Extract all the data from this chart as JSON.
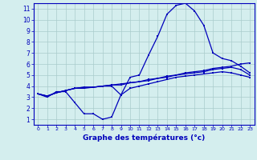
{
  "title": "Graphe des températures (°c)",
  "background_color": "#d4eeee",
  "grid_color": "#aacccc",
  "line_color": "#0000bb",
  "xlim": [
    -0.5,
    23.5
  ],
  "ylim": [
    0.5,
    11.5
  ],
  "xticks": [
    0,
    1,
    2,
    3,
    4,
    5,
    6,
    7,
    8,
    9,
    10,
    11,
    12,
    13,
    14,
    15,
    16,
    17,
    18,
    19,
    20,
    21,
    22,
    23
  ],
  "yticks": [
    1,
    2,
    3,
    4,
    5,
    6,
    7,
    8,
    9,
    10,
    11
  ],
  "curve1_x": [
    0,
    1,
    2,
    3,
    4,
    5,
    6,
    7,
    8,
    9,
    10,
    11,
    12,
    13,
    14,
    15,
    16,
    17,
    18,
    19,
    20,
    21,
    22,
    23
  ],
  "curve1_y": [
    3.3,
    3.0,
    3.5,
    3.5,
    2.5,
    1.5,
    1.5,
    1.0,
    1.2,
    3.2,
    4.8,
    5.0,
    6.8,
    8.5,
    10.5,
    11.3,
    11.5,
    10.8,
    9.5,
    7.0,
    6.5,
    6.3,
    5.8,
    5.2
  ],
  "curve2_x": [
    0,
    1,
    2,
    3,
    4,
    5,
    6,
    7,
    8,
    9,
    10,
    11,
    12,
    13,
    14,
    15,
    16,
    17,
    18,
    19,
    20,
    21,
    22,
    23
  ],
  "curve2_y": [
    3.3,
    3.1,
    3.4,
    3.6,
    3.8,
    3.9,
    3.9,
    4.0,
    4.1,
    4.2,
    4.3,
    4.4,
    4.6,
    4.7,
    4.9,
    5.0,
    5.2,
    5.3,
    5.4,
    5.6,
    5.7,
    5.8,
    6.0,
    6.1
  ],
  "curve3_x": [
    0,
    1,
    2,
    3,
    4,
    5,
    6,
    7,
    8,
    9,
    10,
    11,
    12,
    13,
    14,
    15,
    16,
    17,
    18,
    19,
    20,
    21,
    22,
    23
  ],
  "curve3_y": [
    3.3,
    3.1,
    3.4,
    3.6,
    3.8,
    3.9,
    3.9,
    4.0,
    4.1,
    4.1,
    4.3,
    4.4,
    4.5,
    4.7,
    4.8,
    5.0,
    5.1,
    5.2,
    5.3,
    5.5,
    5.6,
    5.7,
    5.5,
    5.0
  ],
  "curve4_x": [
    0,
    1,
    2,
    3,
    4,
    5,
    6,
    7,
    8,
    9,
    10,
    11,
    12,
    13,
    14,
    15,
    16,
    17,
    18,
    19,
    20,
    21,
    22,
    23
  ],
  "curve4_y": [
    3.3,
    3.1,
    3.4,
    3.6,
    3.8,
    3.8,
    3.9,
    4.0,
    4.0,
    3.2,
    3.8,
    4.0,
    4.2,
    4.4,
    4.6,
    4.8,
    4.9,
    5.0,
    5.1,
    5.2,
    5.3,
    5.2,
    5.0,
    4.8
  ]
}
